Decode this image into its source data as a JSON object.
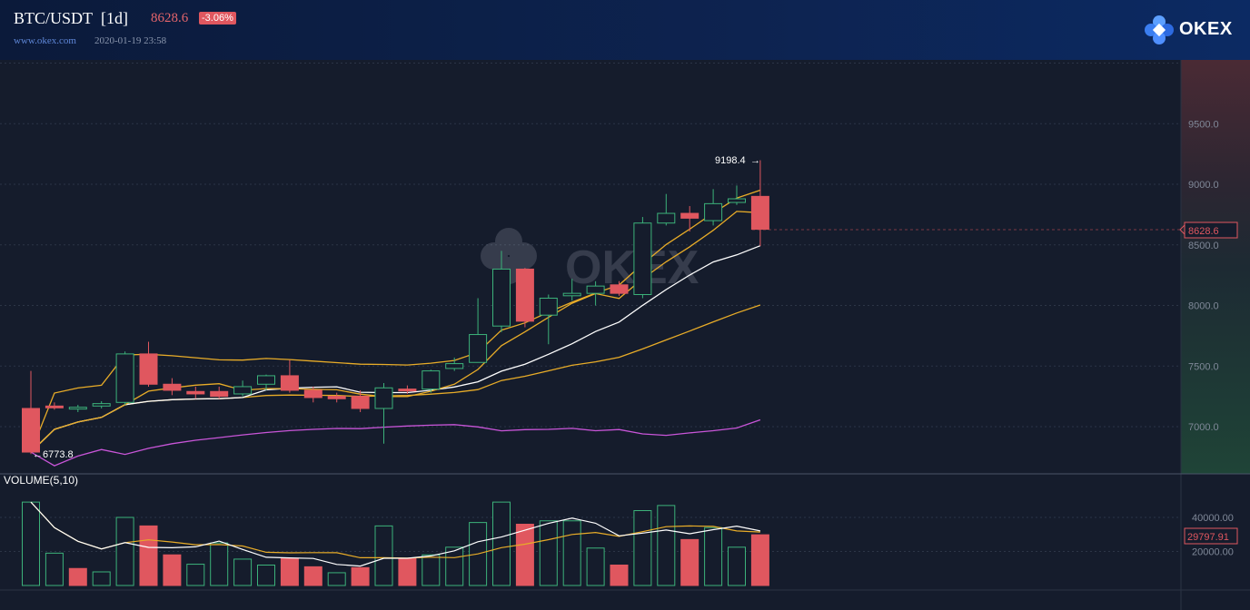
{
  "header": {
    "pair": "BTC/USDT",
    "interval": "[1d]",
    "last_price": "8628.6",
    "change_pct": "-3.06%",
    "site": "www.okex.com",
    "timestamp": "2020-01-19 23:58",
    "logo_text": "OKEX"
  },
  "watermark_text": "OKEX",
  "colors": {
    "up": "#3cb27a",
    "down": "#e0575f",
    "ma_white": "#ffffff",
    "ma_yellow": "#e8ac28",
    "boll_purple": "#c855d8",
    "background": "#151c2c"
  },
  "price_axis": {
    "ticks": [
      "9500.0",
      "9000.0",
      "8500.0",
      "8000.0",
      "7500.0",
      "7000.0"
    ],
    "current_label": "8628.6"
  },
  "annotations": {
    "high": "9198.4",
    "low": "6773.8"
  },
  "volume_panel": {
    "label": "VOLUME(5,10)",
    "ticks": [
      "40000.00",
      "20000.00"
    ],
    "current_label": "29797.91"
  },
  "chart_data": {
    "type": "candlestick",
    "series": [
      {
        "name": "price",
        "candles": [
          [
            7150,
            6790,
            7460,
            6773.8
          ],
          [
            7170,
            7165,
            7200,
            7140
          ],
          [
            7150,
            7160,
            7180,
            7120
          ],
          [
            7170,
            7190,
            7210,
            7150
          ],
          [
            7200,
            7600,
            7620,
            7180
          ],
          [
            7600,
            7350,
            7700,
            7330
          ],
          [
            7350,
            7300,
            7400,
            7260
          ],
          [
            7290,
            7270,
            7330,
            7230
          ],
          [
            7290,
            7250,
            7330,
            7230
          ],
          [
            7270,
            7330,
            7380,
            7250
          ],
          [
            7350,
            7420,
            7430,
            7300
          ],
          [
            7420,
            7300,
            7550,
            7280
          ],
          [
            7300,
            7240,
            7330,
            7200
          ],
          [
            7250,
            7230,
            7280,
            7200
          ],
          [
            7250,
            7150,
            7300,
            7120
          ],
          [
            7150,
            7320,
            7360,
            6860
          ],
          [
            7310,
            7300,
            7340,
            7270
          ],
          [
            7310,
            7460,
            7470,
            7280
          ],
          [
            7480,
            7520,
            7570,
            7460
          ],
          [
            7530,
            7760,
            8060,
            7530
          ],
          [
            7830,
            8300,
            8450,
            7780
          ],
          [
            8300,
            7870,
            8310,
            7820
          ],
          [
            7920,
            8060,
            8090,
            7680
          ],
          [
            8080,
            8100,
            8220,
            8040
          ],
          [
            8100,
            8160,
            8200,
            8000
          ],
          [
            8170,
            8100,
            8200,
            8080
          ],
          [
            8090,
            8680,
            8730,
            8060
          ],
          [
            8680,
            8760,
            8920,
            8660
          ],
          [
            8760,
            8720,
            8820,
            8610
          ],
          [
            8700,
            8840,
            8960,
            8660
          ],
          [
            8850,
            8880,
            8990,
            8830
          ],
          [
            8900,
            8628.6,
            9198.4,
            8490
          ]
        ]
      }
    ],
    "volumes": [
      [
        49000,
        "up"
      ],
      [
        19000,
        "up"
      ],
      [
        10000,
        "down"
      ],
      [
        8000,
        "up"
      ],
      [
        40000,
        "up"
      ],
      [
        35000,
        "down"
      ],
      [
        18000,
        "down"
      ],
      [
        12500,
        "up"
      ],
      [
        25000,
        "up"
      ],
      [
        15500,
        "up"
      ],
      [
        12000,
        "up"
      ],
      [
        16000,
        "down"
      ],
      [
        11000,
        "down"
      ],
      [
        7500,
        "up"
      ],
      [
        10500,
        "down"
      ],
      [
        35000,
        "up"
      ],
      [
        16000,
        "down"
      ],
      [
        18000,
        "up"
      ],
      [
        22500,
        "up"
      ],
      [
        37000,
        "up"
      ],
      [
        49000,
        "up"
      ],
      [
        36000,
        "down"
      ],
      [
        38000,
        "up"
      ],
      [
        38000,
        "up"
      ],
      [
        22000,
        "up"
      ],
      [
        12000,
        "down"
      ],
      [
        44000,
        "up"
      ],
      [
        47000,
        "up"
      ],
      [
        27000,
        "down"
      ],
      [
        34000,
        "up"
      ],
      [
        22500,
        "up"
      ],
      [
        29797.91,
        "down"
      ]
    ]
  }
}
